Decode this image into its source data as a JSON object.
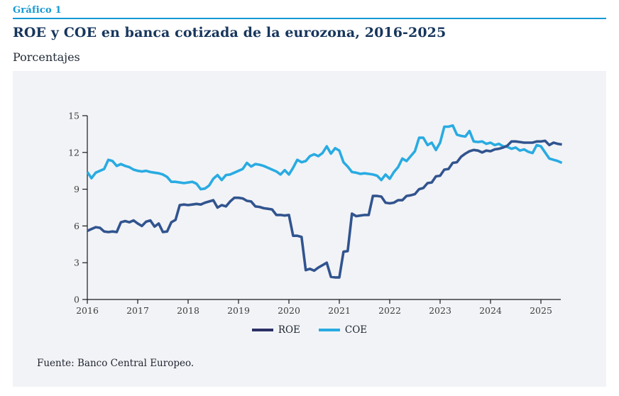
{
  "header": {
    "kicker": "Gráfico 1",
    "title": "ROE y COE en banca cotizada de la eurozona, 2016-2025",
    "subtitle": "Porcentajes"
  },
  "footer": {
    "source": "Fuente: Banco Central Europeo."
  },
  "colors": {
    "accent_blue": "#1599d4",
    "title_navy": "#17365c",
    "panel_bg": "#f2f3f6",
    "axis": "#1a1a1a",
    "tick_text": "#3d3d3d",
    "roe_line": "#31548f",
    "roe_legend_swatch": "#2b3066",
    "coe_line": "#29abe2"
  },
  "chart_data": {
    "type": "line",
    "title": "ROE y COE en banca cotizada de la eurozona, 2016-2025",
    "ylabel": "Porcentajes",
    "ylim": [
      0,
      15
    ],
    "yticks": [
      0,
      3,
      6,
      9,
      12,
      15
    ],
    "xticks": [
      "2016",
      "2017",
      "2018",
      "2019",
      "2020",
      "2021",
      "2022",
      "2023",
      "2024",
      "2025"
    ],
    "x_frequency": "monthly",
    "x_range": [
      "2016-01",
      "2025-06"
    ],
    "grid": false,
    "legend_position": "bottom-center",
    "series": [
      {
        "name": "ROE",
        "color": "#31548f",
        "values": [
          5.6,
          5.75,
          5.9,
          5.85,
          5.55,
          5.5,
          5.55,
          5.5,
          6.3,
          6.4,
          6.3,
          6.45,
          6.2,
          6.0,
          6.35,
          6.45,
          5.95,
          6.2,
          5.5,
          5.55,
          6.3,
          6.5,
          7.7,
          7.75,
          7.7,
          7.75,
          7.8,
          7.75,
          7.9,
          8.0,
          8.1,
          7.5,
          7.7,
          7.6,
          8.0,
          8.3,
          8.3,
          8.25,
          8.05,
          8.0,
          7.6,
          7.55,
          7.45,
          7.4,
          7.35,
          6.9,
          6.9,
          6.85,
          6.9,
          5.2,
          5.2,
          5.1,
          2.4,
          2.5,
          2.35,
          2.6,
          2.8,
          3.0,
          1.85,
          1.8,
          1.8,
          3.9,
          3.95,
          7.0,
          6.8,
          6.85,
          6.9,
          6.9,
          8.45,
          8.45,
          8.4,
          7.9,
          7.85,
          7.9,
          8.1,
          8.1,
          8.45,
          8.5,
          8.6,
          9.0,
          9.1,
          9.5,
          9.55,
          10.05,
          10.1,
          10.6,
          10.65,
          11.15,
          11.2,
          11.65,
          11.9,
          12.1,
          12.2,
          12.15,
          12.0,
          12.15,
          12.1,
          12.25,
          12.3,
          12.4,
          12.55,
          12.9,
          12.9,
          12.85,
          12.8,
          12.8,
          12.8,
          12.9,
          12.9,
          12.95,
          12.6,
          12.8,
          12.7,
          12.65
        ]
      },
      {
        "name": "COE",
        "color": "#29abe2",
        "values": [
          10.4,
          9.9,
          10.35,
          10.5,
          10.65,
          11.4,
          11.3,
          10.9,
          11.05,
          10.9,
          10.8,
          10.6,
          10.5,
          10.45,
          10.5,
          10.4,
          10.35,
          10.3,
          10.2,
          10.0,
          9.6,
          9.6,
          9.55,
          9.5,
          9.55,
          9.6,
          9.45,
          9.0,
          9.05,
          9.3,
          9.85,
          10.15,
          9.75,
          10.15,
          10.2,
          10.35,
          10.5,
          10.65,
          11.15,
          10.85,
          11.05,
          11.0,
          10.9,
          10.75,
          10.6,
          10.45,
          10.2,
          10.55,
          10.2,
          10.75,
          11.4,
          11.2,
          11.3,
          11.7,
          11.85,
          11.7,
          11.95,
          12.5,
          11.9,
          12.35,
          12.15,
          11.2,
          10.85,
          10.4,
          10.35,
          10.25,
          10.3,
          10.25,
          10.2,
          10.1,
          9.75,
          10.2,
          9.85,
          10.4,
          10.8,
          11.5,
          11.3,
          11.7,
          12.1,
          13.2,
          13.2,
          12.6,
          12.8,
          12.2,
          12.8,
          14.1,
          14.1,
          14.2,
          13.45,
          13.35,
          13.3,
          13.75,
          12.9,
          12.85,
          12.9,
          12.7,
          12.8,
          12.6,
          12.7,
          12.5,
          12.45,
          12.3,
          12.4,
          12.15,
          12.25,
          12.05,
          11.95,
          12.6,
          12.5,
          12.0,
          11.5,
          11.4,
          11.3,
          11.15
        ]
      }
    ]
  }
}
